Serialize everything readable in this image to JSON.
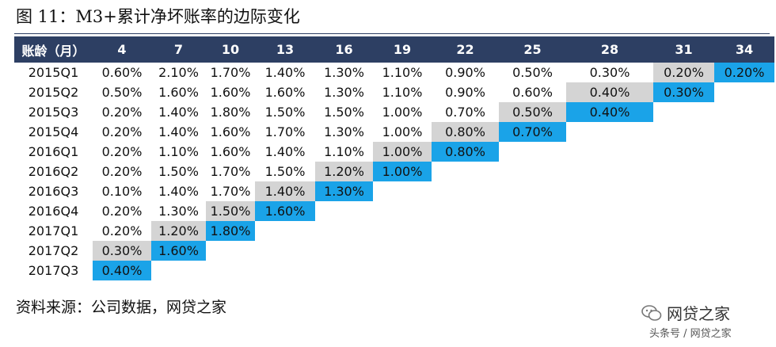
{
  "figure": {
    "title": "图 11：M3+累计净坏账率的边际变化",
    "source": "资料来源：公司数据，网贷之家"
  },
  "table": {
    "header_label": "账龄（月）",
    "columns": [
      "4",
      "7",
      "10",
      "13",
      "16",
      "19",
      "22",
      "25",
      "28",
      "31",
      "34"
    ],
    "rows": [
      {
        "label": "2015Q1",
        "values": [
          "0.60%",
          "2.10%",
          "1.70%",
          "1.40%",
          "1.30%",
          "1.10%",
          "0.90%",
          "0.50%",
          "0.30%",
          "0.20%",
          "0.20%"
        ]
      },
      {
        "label": "2015Q2",
        "values": [
          "0.50%",
          "1.60%",
          "1.60%",
          "1.60%",
          "1.30%",
          "1.10%",
          "0.90%",
          "0.60%",
          "0.40%",
          "0.30%"
        ]
      },
      {
        "label": "2015Q3",
        "values": [
          "0.20%",
          "1.40%",
          "1.80%",
          "1.50%",
          "1.50%",
          "1.00%",
          "0.70%",
          "0.50%",
          "0.40%"
        ]
      },
      {
        "label": "2015Q4",
        "values": [
          "0.20%",
          "1.40%",
          "1.60%",
          "1.70%",
          "1.30%",
          "1.00%",
          "0.80%",
          "0.70%"
        ]
      },
      {
        "label": "2016Q1",
        "values": [
          "0.20%",
          "1.10%",
          "1.60%",
          "1.40%",
          "1.10%",
          "1.00%",
          "0.80%"
        ]
      },
      {
        "label": "2016Q2",
        "values": [
          "0.20%",
          "1.50%",
          "1.70%",
          "1.50%",
          "1.20%",
          "1.00%"
        ]
      },
      {
        "label": "2016Q3",
        "values": [
          "0.10%",
          "1.40%",
          "1.70%",
          "1.40%",
          "1.30%"
        ]
      },
      {
        "label": "2016Q4",
        "values": [
          "0.20%",
          "1.30%",
          "1.50%",
          "1.60%"
        ]
      },
      {
        "label": "2017Q1",
        "values": [
          "0.20%",
          "1.20%",
          "1.80%"
        ]
      },
      {
        "label": "2017Q2",
        "values": [
          "0.30%",
          "1.60%"
        ]
      },
      {
        "label": "2017Q3",
        "values": [
          "0.40%"
        ]
      }
    ],
    "colors": {
      "header_bg": "#2d3f63",
      "header_text": "#ffffff",
      "last_value_highlight": "#1aa3e8",
      "second_last_highlight": "#d4d4d4"
    }
  },
  "watermark": {
    "main": "网贷之家",
    "sub": "头条号 / 网贷之家",
    "icon": "wechat-icon"
  }
}
